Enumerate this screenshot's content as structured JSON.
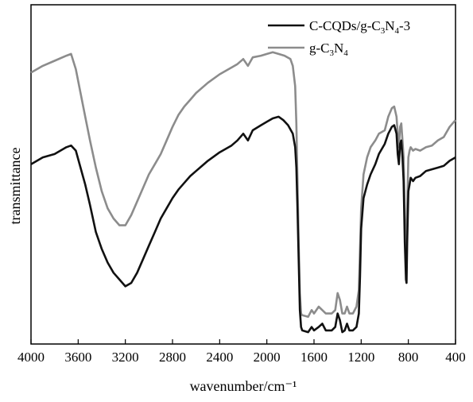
{
  "chart_data": {
    "type": "line",
    "title": "",
    "xlabel": "wavenumber/cm⁻¹",
    "ylabel": "transmittance",
    "xlim": [
      4000,
      400
    ],
    "x_reversed": true,
    "xticks": [
      4000,
      3600,
      3200,
      2800,
      2400,
      2000,
      1600,
      1200,
      800,
      400
    ],
    "ylim": [
      0,
      100
    ],
    "yticks": [],
    "grid": false,
    "legend": {
      "placement": "top-right"
    },
    "series": [
      {
        "name": "C-CQDs/g-C3N4-3",
        "legend_parts": [
          {
            "t": "C-CQDs/g-C",
            "s": false
          },
          {
            "t": "3",
            "s": true
          },
          {
            "t": "N",
            "s": false
          },
          {
            "t": "4",
            "s": true
          },
          {
            "t": "-3",
            "s": false
          }
        ],
        "color": "#111111",
        "points": [
          [
            4000,
            53
          ],
          [
            3900,
            55
          ],
          [
            3800,
            56
          ],
          [
            3700,
            58
          ],
          [
            3660,
            58.5
          ],
          [
            3620,
            57
          ],
          [
            3580,
            52
          ],
          [
            3540,
            47
          ],
          [
            3500,
            41
          ],
          [
            3450,
            33
          ],
          [
            3400,
            28
          ],
          [
            3350,
            24
          ],
          [
            3300,
            21
          ],
          [
            3250,
            19
          ],
          [
            3200,
            17
          ],
          [
            3150,
            18
          ],
          [
            3100,
            21
          ],
          [
            3050,
            25
          ],
          [
            3000,
            29
          ],
          [
            2950,
            33
          ],
          [
            2900,
            37
          ],
          [
            2850,
            40
          ],
          [
            2800,
            43
          ],
          [
            2750,
            45.5
          ],
          [
            2700,
            47.5
          ],
          [
            2650,
            49.5
          ],
          [
            2600,
            51
          ],
          [
            2500,
            54
          ],
          [
            2400,
            56.5
          ],
          [
            2300,
            58.5
          ],
          [
            2250,
            60
          ],
          [
            2200,
            62
          ],
          [
            2160,
            60
          ],
          [
            2120,
            63
          ],
          [
            2050,
            64.5
          ],
          [
            2000,
            65.5
          ],
          [
            1950,
            66.5
          ],
          [
            1900,
            67
          ],
          [
            1860,
            66
          ],
          [
            1820,
            64.5
          ],
          [
            1780,
            62
          ],
          [
            1760,
            58
          ],
          [
            1750,
            52
          ],
          [
            1740,
            40
          ],
          [
            1730,
            25
          ],
          [
            1720,
            10
          ],
          [
            1710,
            5
          ],
          [
            1700,
            4
          ],
          [
            1650,
            3.5
          ],
          [
            1620,
            5
          ],
          [
            1600,
            4
          ],
          [
            1560,
            5
          ],
          [
            1530,
            6
          ],
          [
            1500,
            4
          ],
          [
            1470,
            4
          ],
          [
            1450,
            4
          ],
          [
            1420,
            5
          ],
          [
            1400,
            9
          ],
          [
            1380,
            7
          ],
          [
            1360,
            3.5
          ],
          [
            1340,
            4
          ],
          [
            1320,
            6
          ],
          [
            1300,
            4
          ],
          [
            1270,
            4
          ],
          [
            1240,
            5
          ],
          [
            1220,
            9
          ],
          [
            1210,
            20
          ],
          [
            1200,
            34
          ],
          [
            1180,
            43
          ],
          [
            1150,
            47
          ],
          [
            1120,
            50
          ],
          [
            1080,
            53
          ],
          [
            1050,
            56
          ],
          [
            1000,
            59
          ],
          [
            970,
            62
          ],
          [
            940,
            64
          ],
          [
            920,
            64.5
          ],
          [
            900,
            62
          ],
          [
            890,
            56
          ],
          [
            880,
            53
          ],
          [
            870,
            59
          ],
          [
            860,
            60
          ],
          [
            850,
            55
          ],
          [
            840,
            48
          ],
          [
            830,
            30
          ],
          [
            820,
            19
          ],
          [
            815,
            18
          ],
          [
            810,
            30
          ],
          [
            800,
            45
          ],
          [
            790,
            47
          ],
          [
            780,
            49
          ],
          [
            760,
            48
          ],
          [
            740,
            49
          ],
          [
            700,
            49.5
          ],
          [
            650,
            51
          ],
          [
            600,
            51.5
          ],
          [
            550,
            52
          ],
          [
            500,
            52.5
          ],
          [
            450,
            54
          ],
          [
            400,
            55
          ]
        ]
      },
      {
        "name": "g-C3N4",
        "legend_parts": [
          {
            "t": "g-C",
            "s": false
          },
          {
            "t": "3",
            "s": true
          },
          {
            "t": "N",
            "s": false
          },
          {
            "t": "4",
            "s": true
          }
        ],
        "color": "#8c8c8c",
        "points": [
          [
            4000,
            80
          ],
          [
            3900,
            82
          ],
          [
            3800,
            83.5
          ],
          [
            3700,
            85
          ],
          [
            3660,
            85.5
          ],
          [
            3620,
            81
          ],
          [
            3580,
            74
          ],
          [
            3540,
            67
          ],
          [
            3500,
            60
          ],
          [
            3450,
            52
          ],
          [
            3400,
            45
          ],
          [
            3350,
            40
          ],
          [
            3300,
            37
          ],
          [
            3250,
            35
          ],
          [
            3200,
            35
          ],
          [
            3150,
            38
          ],
          [
            3100,
            42
          ],
          [
            3050,
            46
          ],
          [
            3000,
            50
          ],
          [
            2950,
            53
          ],
          [
            2900,
            56
          ],
          [
            2850,
            60
          ],
          [
            2800,
            64
          ],
          [
            2750,
            67.5
          ],
          [
            2700,
            70
          ],
          [
            2650,
            72
          ],
          [
            2600,
            74
          ],
          [
            2500,
            77
          ],
          [
            2400,
            79.5
          ],
          [
            2300,
            81.5
          ],
          [
            2250,
            82.5
          ],
          [
            2200,
            84
          ],
          [
            2160,
            82
          ],
          [
            2120,
            84.5
          ],
          [
            2050,
            85
          ],
          [
            2000,
            85.5
          ],
          [
            1950,
            86
          ],
          [
            1900,
            85.5
          ],
          [
            1850,
            85
          ],
          [
            1800,
            84
          ],
          [
            1780,
            82
          ],
          [
            1760,
            76
          ],
          [
            1750,
            65
          ],
          [
            1740,
            48
          ],
          [
            1730,
            30
          ],
          [
            1720,
            15
          ],
          [
            1710,
            9
          ],
          [
            1700,
            8.5
          ],
          [
            1650,
            8
          ],
          [
            1620,
            10
          ],
          [
            1600,
            9
          ],
          [
            1560,
            11
          ],
          [
            1530,
            10
          ],
          [
            1500,
            9
          ],
          [
            1450,
            9
          ],
          [
            1420,
            10
          ],
          [
            1400,
            15
          ],
          [
            1380,
            13
          ],
          [
            1360,
            9
          ],
          [
            1340,
            9
          ],
          [
            1320,
            11
          ],
          [
            1300,
            9
          ],
          [
            1270,
            9
          ],
          [
            1240,
            11
          ],
          [
            1220,
            16
          ],
          [
            1210,
            28
          ],
          [
            1200,
            40
          ],
          [
            1180,
            50
          ],
          [
            1150,
            55
          ],
          [
            1120,
            58
          ],
          [
            1080,
            60
          ],
          [
            1050,
            62
          ],
          [
            1000,
            63
          ],
          [
            970,
            67
          ],
          [
            940,
            69.5
          ],
          [
            920,
            70
          ],
          [
            900,
            67
          ],
          [
            890,
            62
          ],
          [
            880,
            58
          ],
          [
            870,
            64
          ],
          [
            860,
            65
          ],
          [
            850,
            60
          ],
          [
            840,
            55
          ],
          [
            830,
            38
          ],
          [
            820,
            28
          ],
          [
            815,
            26
          ],
          [
            810,
            40
          ],
          [
            800,
            55
          ],
          [
            790,
            57
          ],
          [
            780,
            58
          ],
          [
            760,
            57
          ],
          [
            740,
            57.5
          ],
          [
            700,
            57
          ],
          [
            650,
            58
          ],
          [
            600,
            58.5
          ],
          [
            550,
            60
          ],
          [
            500,
            61
          ],
          [
            450,
            64
          ],
          [
            400,
            66
          ]
        ]
      }
    ]
  }
}
